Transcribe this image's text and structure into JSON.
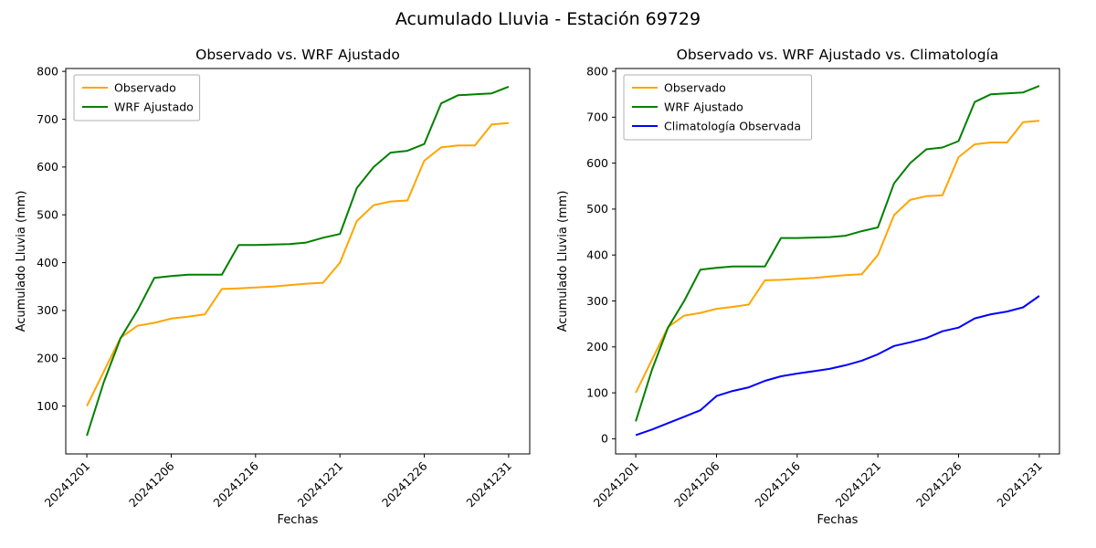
{
  "figure": {
    "suptitle": "Acumulado Lluvia - Estación 69729",
    "background": "#ffffff"
  },
  "style": {
    "text_color": "#000000",
    "axis_color": "#000000",
    "legend_border": "#b0b0b0",
    "observado_color": "#ffa500",
    "wrf_color": "#008000",
    "climatologia_color": "#0000ff"
  },
  "chart_data": [
    {
      "type": "line",
      "title": "Observado vs. WRF Ajustado",
      "xlabel": "Fechas",
      "ylabel": "Acumulado Lluvia (mm)",
      "n_points": 26,
      "x_tick_positions": [
        0,
        5,
        10,
        15,
        20,
        25
      ],
      "x_tick_labels": [
        "20241201",
        "20241206",
        "20241216",
        "20241221",
        "20241226",
        "20241231"
      ],
      "yticks": [
        100,
        200,
        300,
        400,
        500,
        600,
        700,
        800
      ],
      "ylim": [
        0,
        806
      ],
      "grid": false,
      "legend_position": "upper left",
      "series": [
        {
          "name": "Observado",
          "color": "#ffa500",
          "values": [
            100,
            172,
            243,
            268,
            274,
            283,
            287,
            292,
            345,
            346,
            348,
            350,
            353,
            356,
            358,
            400,
            487,
            520,
            528,
            530,
            613,
            641,
            645,
            645,
            689,
            692
          ]
        },
        {
          "name": "WRF Ajustado",
          "color": "#008000",
          "values": [
            38,
            150,
            242,
            300,
            368,
            372,
            375,
            375,
            375,
            437,
            437,
            438,
            439,
            442,
            452,
            460,
            556,
            600,
            630,
            634,
            648,
            733,
            750,
            752,
            754,
            768
          ]
        }
      ]
    },
    {
      "type": "line",
      "title": "Observado vs. WRF Ajustado vs. Climatología",
      "xlabel": "Fechas",
      "ylabel": "Acumulado Lluvia (mm)",
      "n_points": 26,
      "x_tick_positions": [
        0,
        5,
        10,
        15,
        20,
        25
      ],
      "x_tick_labels": [
        "20241201",
        "20241206",
        "20241216",
        "20241221",
        "20241226",
        "20241231"
      ],
      "yticks": [
        0,
        100,
        200,
        300,
        400,
        500,
        600,
        700,
        800
      ],
      "ylim": [
        -33,
        806
      ],
      "grid": false,
      "legend_position": "upper left",
      "series": [
        {
          "name": "Observado",
          "color": "#ffa500",
          "values": [
            100,
            172,
            243,
            268,
            274,
            283,
            287,
            292,
            345,
            346,
            348,
            350,
            353,
            356,
            358,
            400,
            487,
            520,
            528,
            530,
            613,
            641,
            645,
            645,
            689,
            692
          ]
        },
        {
          "name": "WRF Ajustado",
          "color": "#008000",
          "values": [
            38,
            150,
            242,
            300,
            368,
            372,
            375,
            375,
            375,
            437,
            437,
            438,
            439,
            442,
            452,
            460,
            556,
            600,
            630,
            634,
            648,
            733,
            750,
            752,
            754,
            768
          ]
        },
        {
          "name": "Climatología Observada",
          "color": "#0000ff",
          "values": [
            8,
            20,
            34,
            48,
            62,
            93,
            104,
            112,
            126,
            136,
            142,
            147,
            152,
            160,
            170,
            184,
            202,
            210,
            219,
            234,
            242,
            262,
            271,
            277,
            286,
            311
          ]
        }
      ]
    }
  ]
}
